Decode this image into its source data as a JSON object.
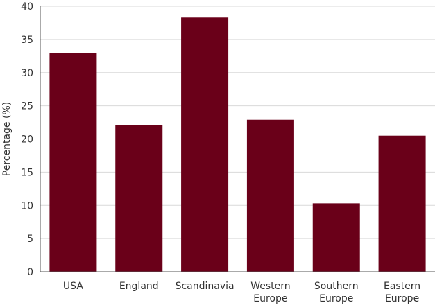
{
  "chart_data": {
    "type": "bar",
    "title": "",
    "xlabel": "",
    "ylabel": "Percentage (%)",
    "categories": [
      [
        "USA"
      ],
      [
        "England"
      ],
      [
        "Scandinavia"
      ],
      [
        "Western",
        "Europe"
      ],
      [
        "Southern",
        "Europe"
      ],
      [
        "Eastern",
        "Europe"
      ]
    ],
    "values": [
      32.9,
      22.1,
      38.3,
      22.9,
      10.3,
      20.5
    ],
    "ylim": [
      0,
      40
    ],
    "yticks": [
      0,
      5,
      10,
      15,
      20,
      25,
      30,
      35,
      40
    ],
    "grid": true,
    "legend": "none",
    "colors": {
      "bar": "#6a0019",
      "grid": "#d9d9d9",
      "axis": "#555555"
    }
  }
}
